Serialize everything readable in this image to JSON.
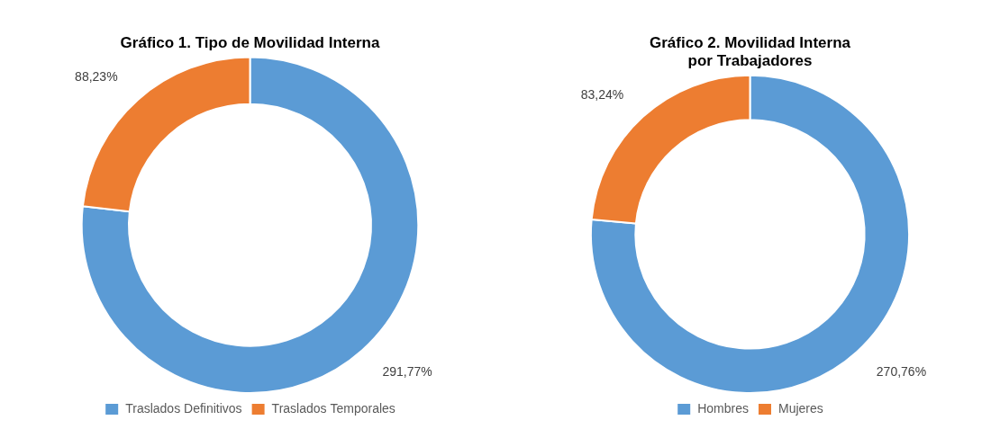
{
  "chart_data": [
    {
      "type": "doughnut",
      "title": "Gráfico 1. Tipo de Movilidad Interna",
      "categories": [
        "Traslados Definitivos",
        "Traslados Temporales"
      ],
      "values": [
        291.77,
        88.23
      ],
      "value_labels": [
        "291,77%",
        "88,23%"
      ],
      "colors": [
        "#5B9BD5",
        "#ED7D31"
      ],
      "data_labels": true,
      "legend": "bottom"
    },
    {
      "type": "doughnut",
      "title": "Gráfico 2. Movilidad Interna\npor Trabajadores",
      "categories": [
        "Hombres",
        "Mujeres"
      ],
      "values": [
        270.76,
        83.24
      ],
      "value_labels": [
        "270,76%",
        "83,24%"
      ],
      "colors": [
        "#5B9BD5",
        "#ED7D31"
      ],
      "data_labels": true,
      "legend": "bottom"
    }
  ]
}
